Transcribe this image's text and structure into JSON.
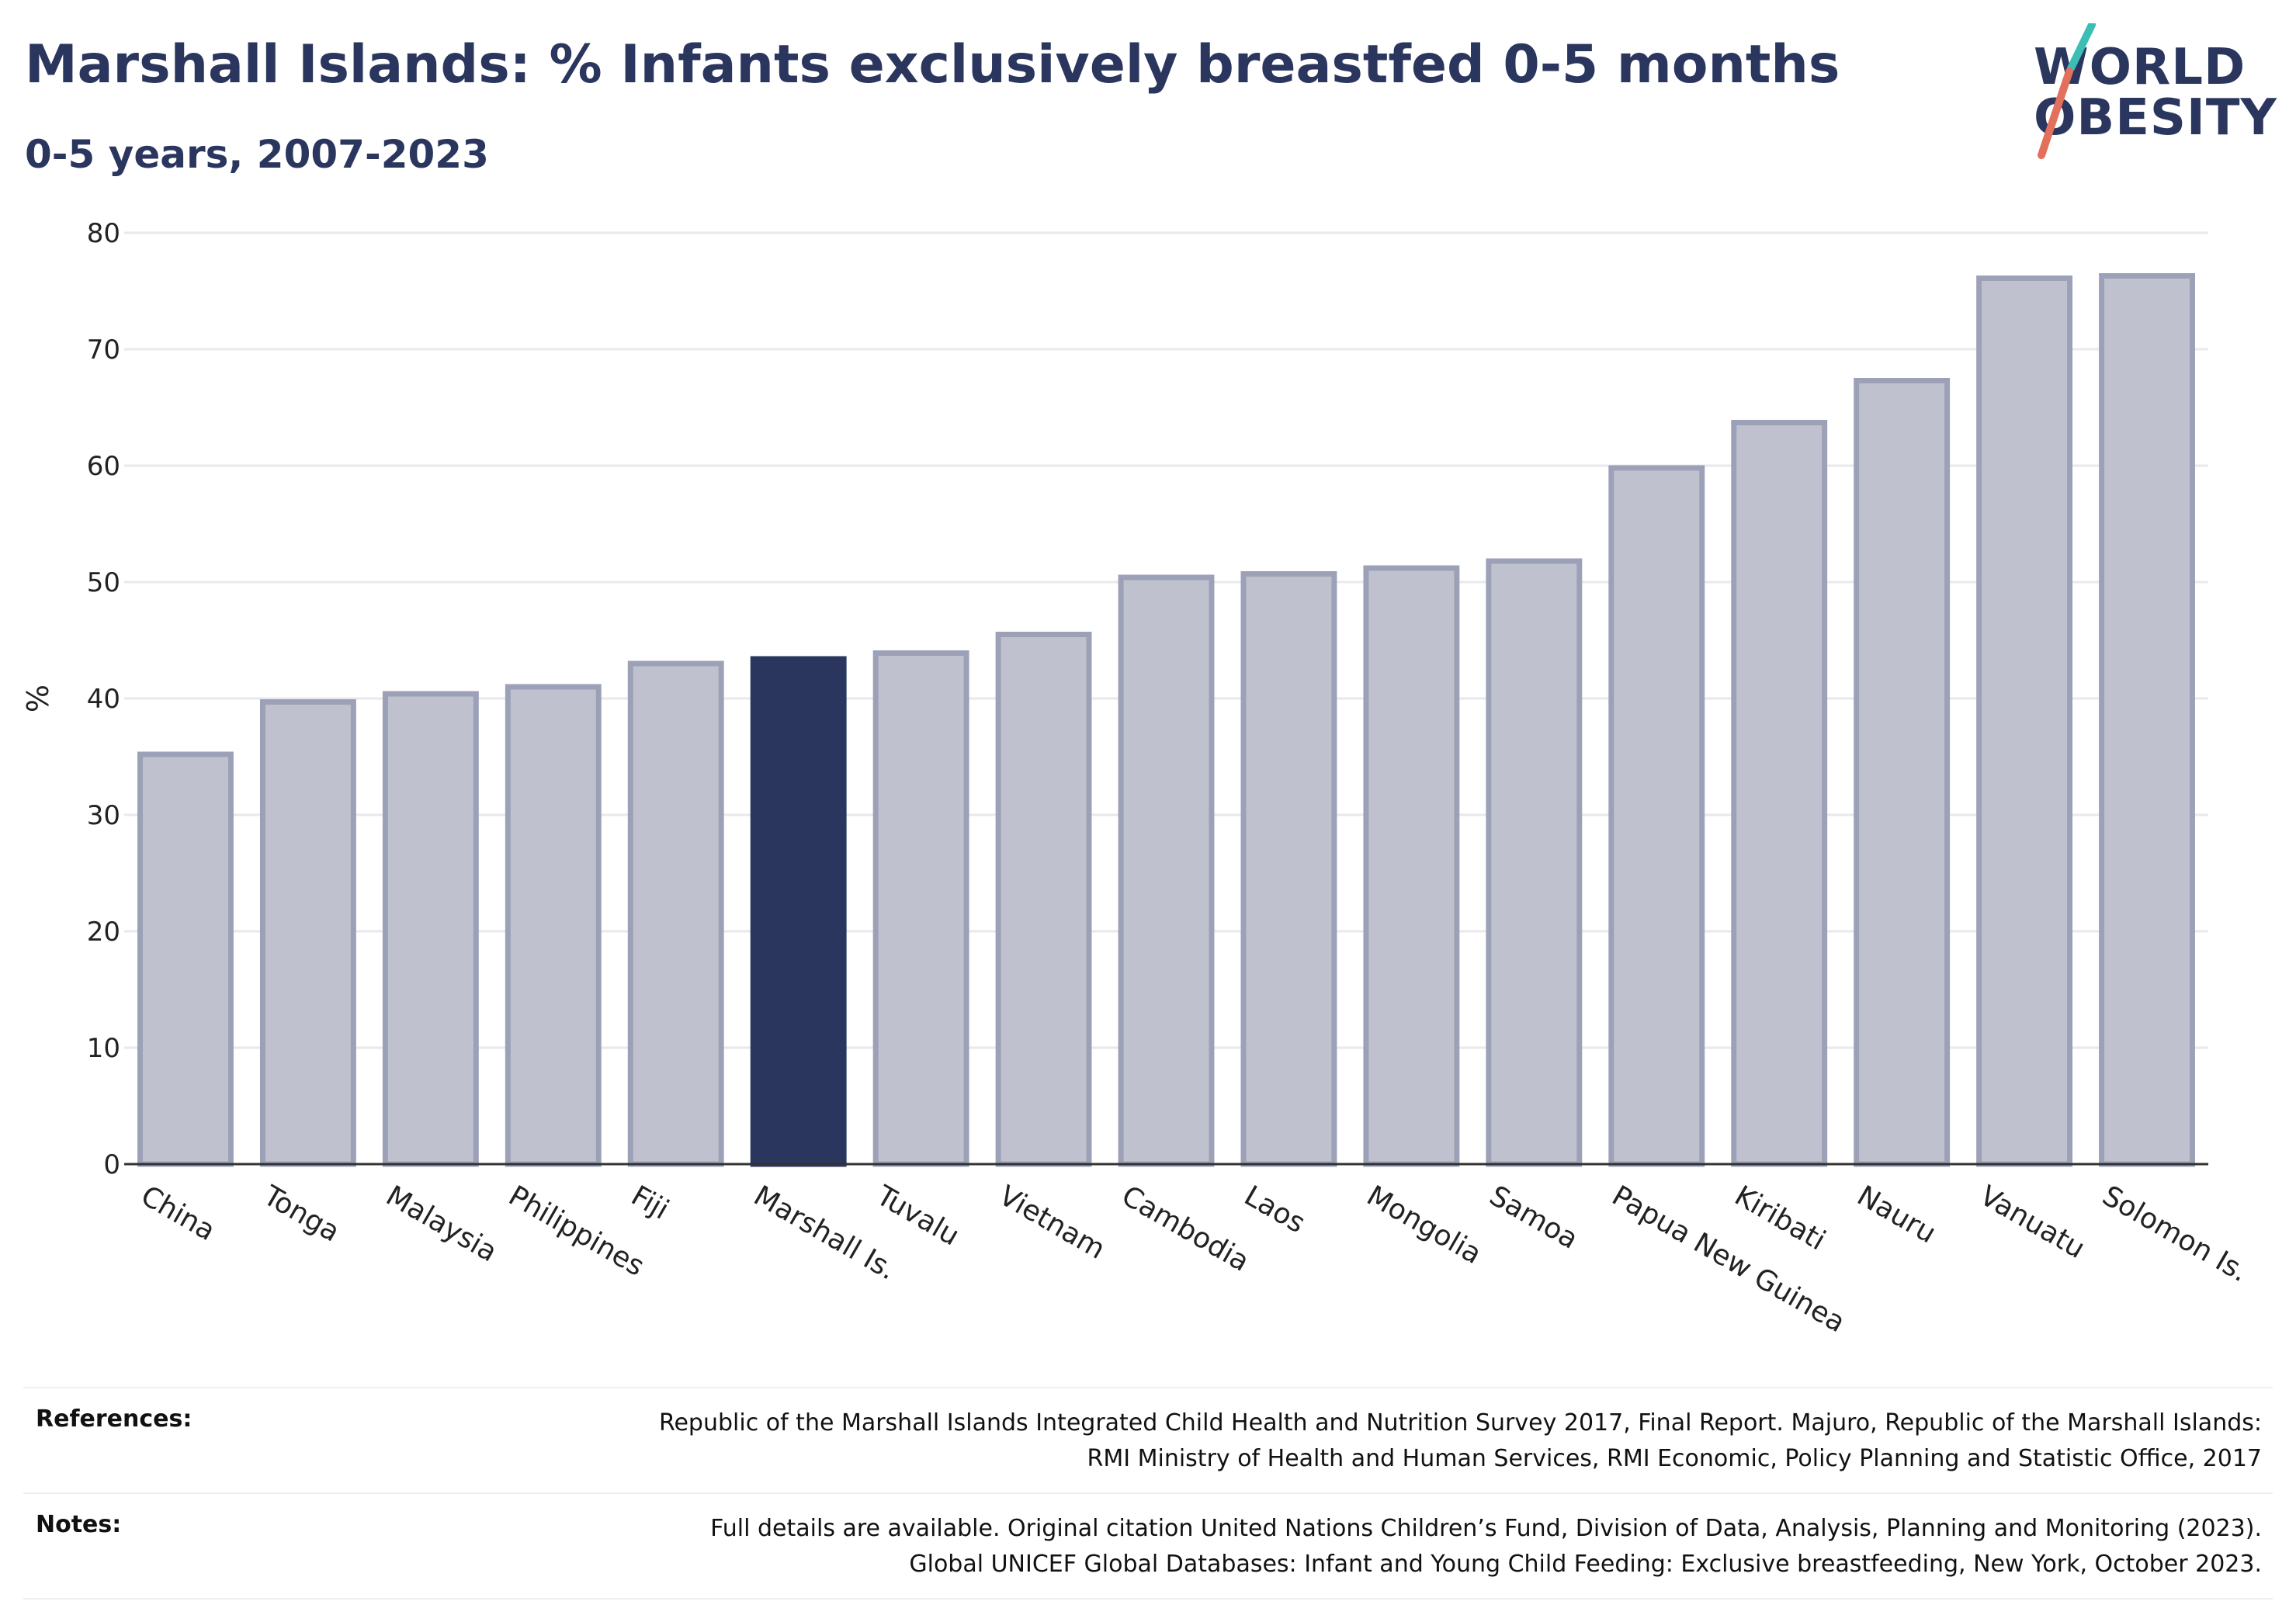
{
  "header": {
    "title": "Marshall Islands: % Infants exclusively breastfed 0-5 months",
    "subtitle": "0-5 years, 2007-2023"
  },
  "logo": {
    "line1": "WORLD",
    "line2": "OBESITY",
    "colors": {
      "teal": "#3bbfb4",
      "coral": "#e2705c",
      "navy": "#2b365e"
    }
  },
  "chart_data": {
    "type": "bar",
    "categories": [
      "China",
      "Tonga",
      "Malaysia",
      "Philippines",
      "Fiji",
      "Marshall Is.",
      "Tuvalu",
      "Vietnam",
      "Cambodia",
      "Laos",
      "Mongolia",
      "Samoa",
      "Papua New Guinea",
      "Kiribati",
      "Nauru",
      "Vanuatu",
      "Solomon Is."
    ],
    "values": [
      35.2,
      39.7,
      40.4,
      41.0,
      43.0,
      43.4,
      43.9,
      45.5,
      50.4,
      50.7,
      51.2,
      51.8,
      59.8,
      63.7,
      67.3,
      76.1,
      76.3
    ],
    "highlight": "Marshall Is.",
    "ylabel": "%",
    "ylim": [
      0,
      80
    ],
    "yticks": [
      0,
      10,
      20,
      30,
      40,
      50,
      60,
      70,
      80
    ],
    "colors": {
      "bar": "#bfc2ce",
      "bar_border": "#9ca1b7",
      "highlight": "#2b365e",
      "grid": "#e8e8ee"
    }
  },
  "footer": {
    "references_label": "References:",
    "references_text": "Republic of the Marshall Islands Integrated Child Health and Nutrition Survey 2017, Final Report. Majuro, Republic of the Marshall Islands: RMI Ministry of Health and Human Services, RMI Economic, Policy Planning and Statistic Office, 2017",
    "notes_label": "Notes:",
    "notes_text": "Full details are available. Original citation United Nations Children’s Fund, Division of Data, Analysis, Planning and Monitoring (2023). Global UNICEF Global Databases: Infant and Young Child Feeding: Exclusive breastfeeding, New York, October 2023."
  }
}
